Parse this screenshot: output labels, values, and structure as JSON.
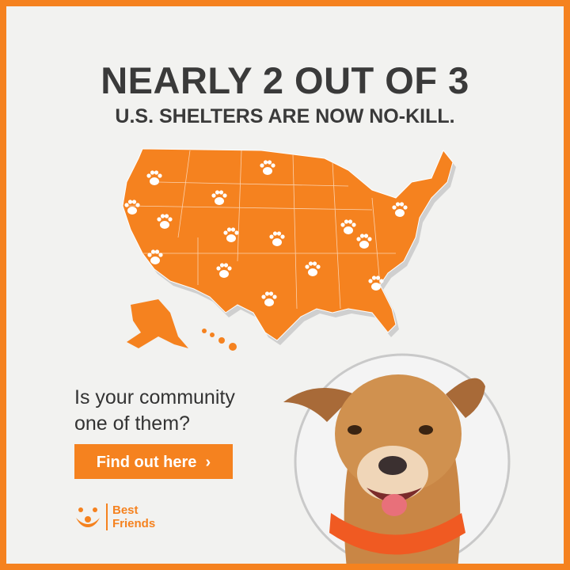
{
  "headline": "NEARLY 2 OUT OF 3",
  "subheadline": "U.S. SHELTERS ARE NOW NO-KILL.",
  "question_line1": "Is your community",
  "question_line2": "one of them?",
  "cta": {
    "label": "Find out here",
    "icon": "chevron-right-icon"
  },
  "brand": {
    "line1": "Best",
    "line2": "Friends"
  },
  "colors": {
    "accent": "#f5821f",
    "text": "#3a3a3a",
    "background": "#f2f2f0"
  },
  "map_icon": "paw-icon"
}
